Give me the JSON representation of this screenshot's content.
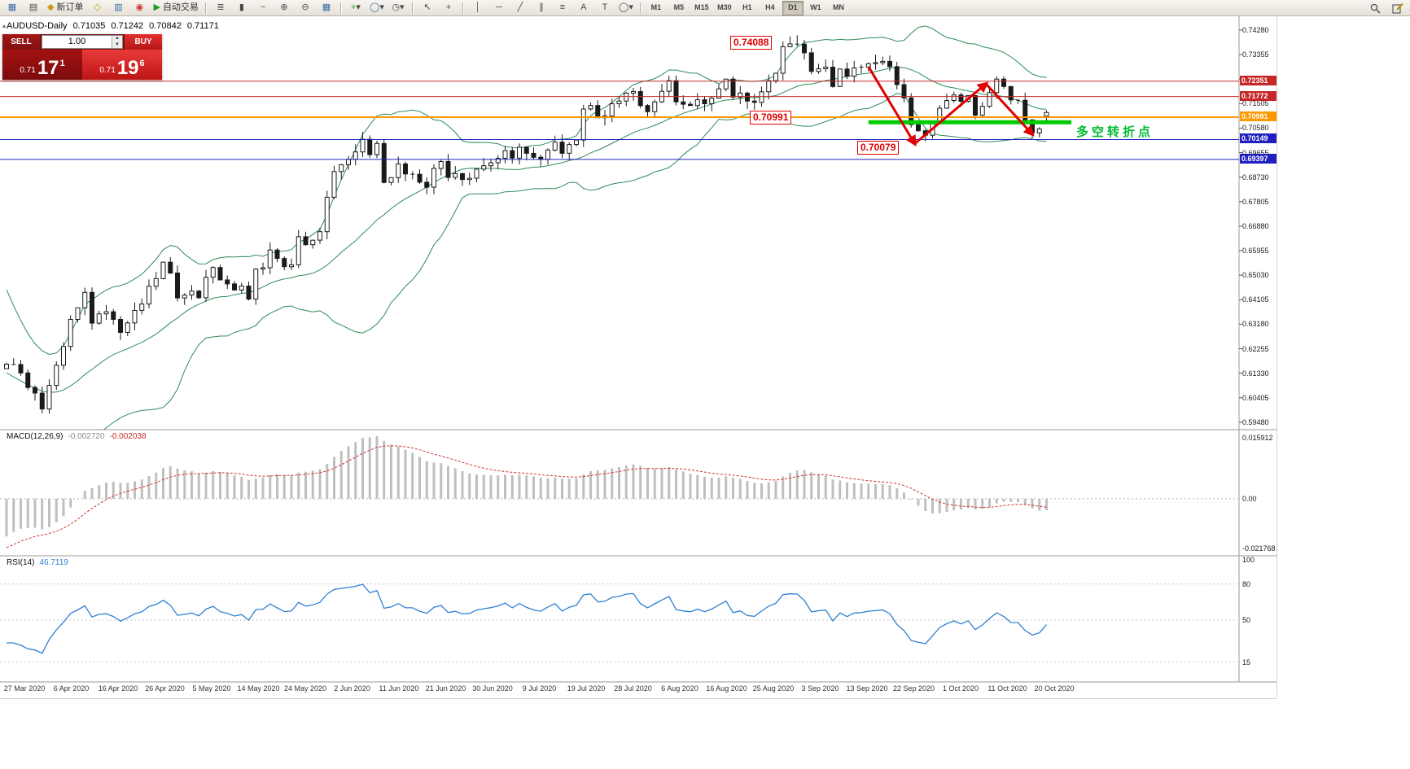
{
  "toolbar": {
    "new_order_label": "新订单",
    "autotrade_label": "自动交易",
    "timeframes": [
      "M1",
      "M5",
      "M15",
      "M30",
      "H1",
      "H4",
      "D1",
      "W1",
      "MN"
    ],
    "active_timeframe": "D1",
    "icons": {
      "chart": "▦",
      "profile": "▤",
      "order_diamond": "◆",
      "deposit": "◇",
      "history": "▥",
      "web": "◉",
      "play": "▶",
      "bars": "≣",
      "candles": "▮",
      "linechart": "~",
      "zoom_in": "⊕",
      "zoom_out": "⊖",
      "tile": "▦",
      "indicator_plus": "+",
      "objects": "◯",
      "clock": "◷",
      "cursor": "↖",
      "crosshair": "+",
      "vline": "│",
      "hline": "─",
      "trendline": "╱",
      "channel": "∥",
      "fibo": "≡",
      "text": "A",
      "label": "T",
      "shapes": "◯",
      "dropdown": "▾"
    }
  },
  "chart": {
    "symbol_period": "AUDUSD-Daily",
    "open": "0.71035",
    "high": "0.71242",
    "low": "0.70842",
    "close": "0.71171"
  },
  "trade_panel": {
    "sell_label": "SELL",
    "buy_label": "BUY",
    "volume": "1.00",
    "sell_price": {
      "small": "0.71",
      "big": "17",
      "sup": "1"
    },
    "buy_price": {
      "small": "0.71",
      "big": "19",
      "sup": "6"
    }
  },
  "panels": {
    "macd": {
      "label": "MACD(12,26,9)",
      "main_value": "-0.002720",
      "signal_value": "-0.002038",
      "axis": {
        "max": "0.015912",
        "zero": "0.00",
        "min": "-0.021768"
      }
    },
    "rsi": {
      "label": "RSI(14)",
      "value": "46.7119",
      "axis_labels": [
        "100",
        "80",
        "50",
        "15"
      ]
    }
  },
  "annotations": {
    "peak_price": "0.74088",
    "pivot_price": "0.70991",
    "low_price": "0.70079",
    "cn_note": "多空转折点"
  },
  "chart_data": {
    "type": "candlestick",
    "symbol": "AUDUSD",
    "timeframe": "Daily",
    "title": "AUDUSD-Daily",
    "price_range": [
      0.592,
      0.748
    ],
    "y_tick_labels": [
      "0.74280",
      "0.73355",
      "0.72430",
      "0.71505",
      "0.70580",
      "0.69655",
      "0.68730",
      "0.67805",
      "0.66880",
      "0.65955",
      "0.65030",
      "0.64105",
      "0.63180",
      "0.62255",
      "0.61330",
      "0.60405",
      "0.59480"
    ],
    "x_tick_labels": [
      "27 Mar 2020",
      "6 Apr 2020",
      "16 Apr 2020",
      "26 Apr 2020",
      "5 May 2020",
      "14 May 2020",
      "24 May 2020",
      "2 Jun 2020",
      "11 Jun 2020",
      "21 Jun 2020",
      "30 Jun 2020",
      "9 Jul 2020",
      "19 Jul 2020",
      "28 Jul 2020",
      "6 Aug 2020",
      "16 Aug 2020",
      "25 Aug 2020",
      "3 Sep 2020",
      "13 Sep 2020",
      "22 Sep 2020",
      "1 Oct 2020",
      "11 Oct 2020",
      "20 Oct 2020"
    ],
    "closes": [
      0.6167,
      0.6166,
      0.6134,
      0.6079,
      0.6058,
      0.5998,
      0.6087,
      0.6163,
      0.6234,
      0.6336,
      0.638,
      0.6438,
      0.6322,
      0.6357,
      0.6365,
      0.6336,
      0.6287,
      0.6323,
      0.637,
      0.6394,
      0.6461,
      0.649,
      0.6552,
      0.6511,
      0.6417,
      0.6428,
      0.6443,
      0.6418,
      0.6495,
      0.6532,
      0.6485,
      0.647,
      0.6447,
      0.6462,
      0.6413,
      0.6526,
      0.6531,
      0.6598,
      0.6566,
      0.6535,
      0.6542,
      0.6648,
      0.6618,
      0.6635,
      0.6667,
      0.6797,
      0.6894,
      0.692,
      0.694,
      0.6968,
      0.7016,
      0.6958,
      0.7,
      0.6853,
      0.6871,
      0.6923,
      0.6885,
      0.6884,
      0.6854,
      0.6835,
      0.6906,
      0.6932,
      0.6872,
      0.6886,
      0.6864,
      0.6869,
      0.6903,
      0.6916,
      0.6927,
      0.6944,
      0.6973,
      0.6945,
      0.6986,
      0.6963,
      0.6948,
      0.694,
      0.6975,
      0.7005,
      0.6963,
      0.6996,
      0.7013,
      0.713,
      0.7143,
      0.7097,
      0.7104,
      0.715,
      0.716,
      0.719,
      0.7196,
      0.7143,
      0.712,
      0.7157,
      0.7197,
      0.7237,
      0.7157,
      0.7148,
      0.7143,
      0.7165,
      0.715,
      0.7171,
      0.7206,
      0.7243,
      0.7175,
      0.719,
      0.716,
      0.7155,
      0.7195,
      0.7237,
      0.7265,
      0.7365,
      0.7376,
      0.7375,
      0.7342,
      0.7272,
      0.7282,
      0.7288,
      0.7215,
      0.7281,
      0.7254,
      0.7285,
      0.7288,
      0.7301,
      0.7305,
      0.731,
      0.729,
      0.7222,
      0.7172,
      0.7071,
      0.7048,
      0.7031,
      0.7077,
      0.7133,
      0.7162,
      0.7183,
      0.7159,
      0.7181,
      0.7107,
      0.714,
      0.7192,
      0.7243,
      0.7215,
      0.7164,
      0.7163,
      0.7089,
      0.704,
      0.7055,
      0.71171
    ],
    "indicator_warmup_closes": [
      0.655,
      0.649,
      0.643,
      0.637,
      0.63,
      0.624,
      0.618,
      0.613,
      0.608,
      0.603,
      0.599,
      0.596,
      0.594,
      0.595,
      0.598,
      0.602,
      0.606,
      0.61,
      0.613,
      0.615
    ],
    "candle_overrides": [
      {
        "i": 111,
        "h": 0.74088
      },
      {
        "i": 129,
        "l": 0.70079
      },
      {
        "i": 146,
        "o": 0.71035,
        "h": 0.71242,
        "l": 0.70842,
        "c": 0.71171
      }
    ],
    "indicators": {
      "bollinger": {
        "period": 20,
        "deviation": 2,
        "color": "#2e8b57"
      },
      "macd": {
        "fast": 12,
        "slow": 26,
        "signal": 9,
        "histogram_color": "#bfbfbf",
        "signal_color": "#d33030"
      },
      "rsi": {
        "period": 14,
        "color": "#2e7fd4",
        "levels": [
          80,
          50,
          15
        ]
      }
    },
    "horizontal_lines": [
      {
        "price": 0.72351,
        "color": "#c62828",
        "width": 1
      },
      {
        "price": 0.71772,
        "color": "#c62828",
        "width": 1
      },
      {
        "price": 0.70991,
        "color": "#ff9800",
        "width": 2
      },
      {
        "price": 0.70149,
        "color": "#2020c0",
        "width": 1
      },
      {
        "price": 0.69397,
        "color": "#2020c0",
        "width": 1
      }
    ],
    "drawings": {
      "support_segment": {
        "from_i": 121,
        "to_i": 149.5,
        "price": 0.708,
        "color": "#00cc00",
        "width": 5
      },
      "zigzag": {
        "color": "#e00000",
        "width": 3,
        "points": [
          [
            121,
            0.729
          ],
          [
            127.5,
            0.6999
          ],
          [
            137.5,
            0.7225
          ],
          [
            144,
            0.7035
          ]
        ]
      }
    }
  }
}
